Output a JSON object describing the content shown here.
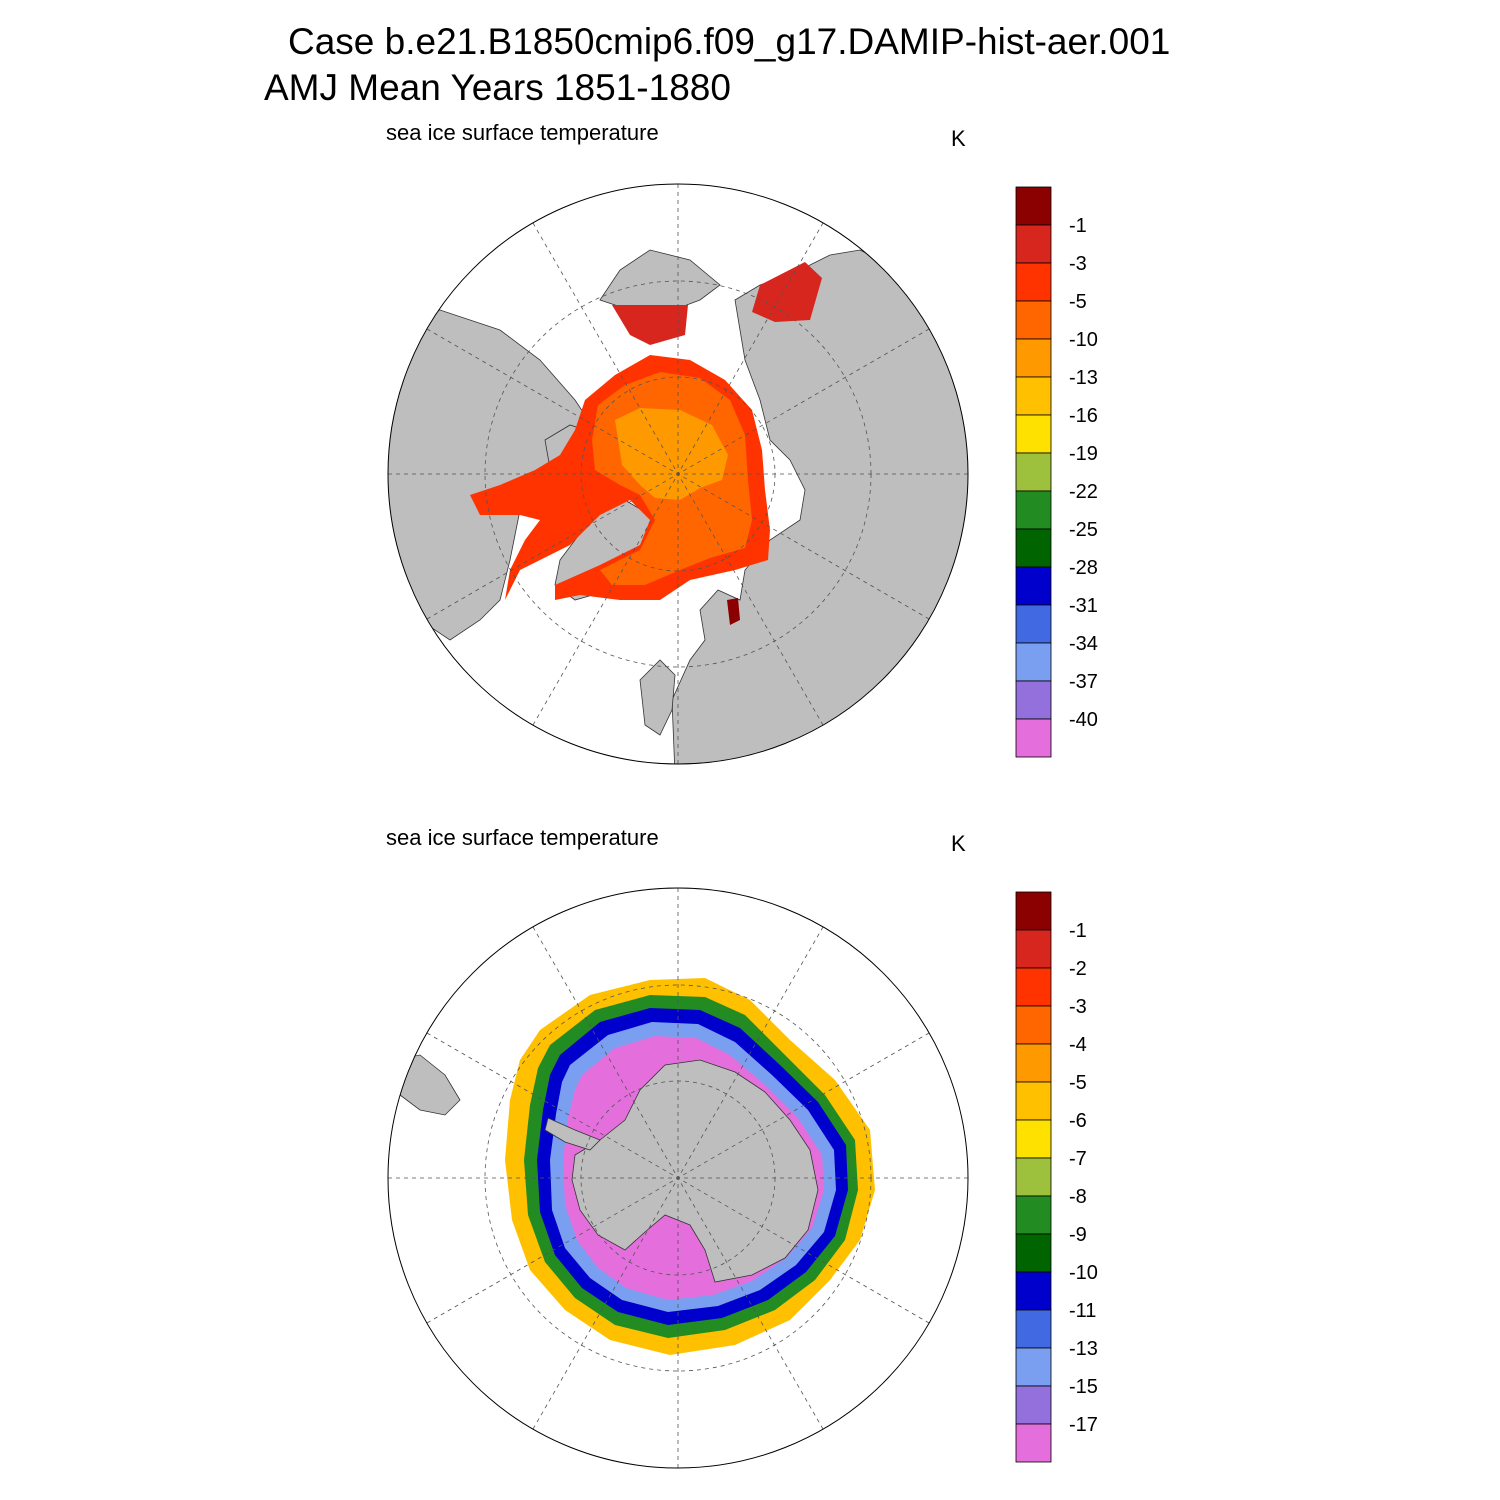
{
  "header": {
    "line1": "Case b.e21.B1850cmip6.f09_g17.DAMIP-hist-aer.001",
    "line2": "AMJ Mean   Years 1851-1880"
  },
  "panels": [
    {
      "id": "nh",
      "variable": "sea ice surface temperature",
      "units": "K",
      "levels": [
        "-1",
        "-3",
        "-5",
        "-10",
        "-13",
        "-16",
        "-19",
        "-22",
        "-25",
        "-28",
        "-31",
        "-34",
        "-37",
        "-40"
      ]
    },
    {
      "id": "sh",
      "variable": "sea ice surface temperature",
      "units": "K",
      "levels": [
        "-1",
        "-2",
        "-3",
        "-4",
        "-5",
        "-6",
        "-7",
        "-8",
        "-9",
        "-10",
        "-11",
        "-13",
        "-15",
        "-17"
      ]
    }
  ],
  "colorbar_colors": [
    "#8b0000",
    "#d7261e",
    "#ff3300",
    "#ff6600",
    "#ff9900",
    "#ffc000",
    "#ffe100",
    "#9dc13c",
    "#228b22",
    "#006400",
    "#0000cd",
    "#4169e1",
    "#7b9ff0",
    "#9370db",
    "#e46fdc"
  ],
  "colors": {
    "land": "#bebebe",
    "ocean": "#ffffff"
  }
}
